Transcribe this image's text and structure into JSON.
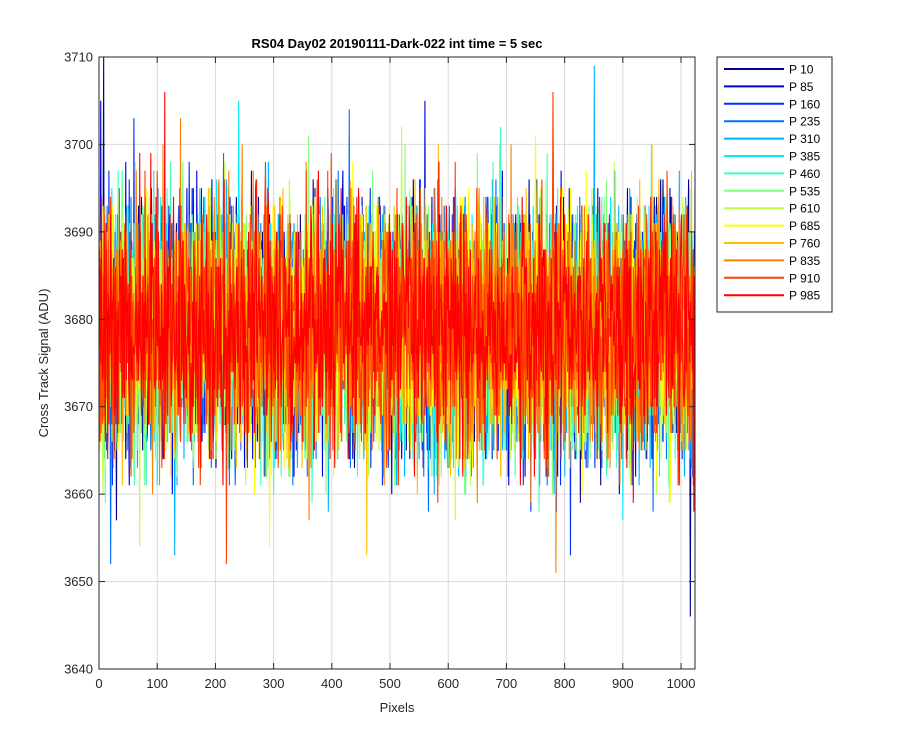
{
  "chart_data": {
    "type": "line",
    "title": "RS04 Day02 20190111-Dark-022 int time = 5 sec",
    "xlabel": "Pixels",
    "ylabel": "Cross Track Signal (ADU)",
    "xlim": [
      0,
      1024
    ],
    "ylim": [
      3640,
      3710
    ],
    "xticks": [
      0,
      100,
      200,
      300,
      400,
      500,
      600,
      700,
      800,
      900,
      1000
    ],
    "yticks": [
      3640,
      3650,
      3660,
      3670,
      3680,
      3690,
      3700,
      3710
    ],
    "grid": true,
    "legend_position": "outside-top-right",
    "signal_mean": 3679,
    "signal_spread": 7,
    "series": [
      {
        "name": "P 10",
        "color": "#00008f",
        "seed": 11,
        "extremes": [
          [
            8,
            3710
          ],
          [
            1016,
            3646
          ]
        ]
      },
      {
        "name": "P 85",
        "color": "#0000dc",
        "seed": 23,
        "extremes": [
          [
            3,
            3705
          ],
          [
            560,
            3705
          ]
        ]
      },
      {
        "name": "P 160",
        "color": "#0030ff",
        "seed": 37,
        "extremes": [
          [
            60,
            3703
          ],
          [
            810,
            3653
          ]
        ]
      },
      {
        "name": "P 235",
        "color": "#0070ff",
        "seed": 41,
        "extremes": [
          [
            20,
            3652
          ],
          [
            430,
            3704
          ]
        ]
      },
      {
        "name": "P 310",
        "color": "#00b0ff",
        "seed": 53,
        "extremes": [
          [
            130,
            3653
          ],
          [
            851,
            3709
          ]
        ]
      },
      {
        "name": "P 385",
        "color": "#00f0ff",
        "seed": 67,
        "extremes": [
          [
            240,
            3705
          ],
          [
            900,
            3657
          ]
        ]
      },
      {
        "name": "P 460",
        "color": "#40ffbf",
        "seed": 71,
        "extremes": [
          [
            300,
            3660
          ],
          [
            690,
            3702
          ]
        ]
      },
      {
        "name": "P 535",
        "color": "#80ff80",
        "seed": 83,
        "extremes": [
          [
            360,
            3701
          ],
          [
            980,
            3659
          ]
        ]
      },
      {
        "name": "P 610",
        "color": "#bfff40",
        "seed": 97,
        "extremes": [
          [
            70,
            3654
          ],
          [
            520,
            3702
          ]
        ]
      },
      {
        "name": "P 685",
        "color": "#ffff00",
        "seed": 101,
        "extremes": [
          [
            293,
            3654
          ],
          [
            750,
            3701
          ]
        ]
      },
      {
        "name": "P 760",
        "color": "#ffbf00",
        "seed": 113,
        "extremes": [
          [
            460,
            3653
          ],
          [
            950,
            3700
          ]
        ]
      },
      {
        "name": "P 835",
        "color": "#ff8000",
        "seed": 127,
        "extremes": [
          [
            785,
            3651
          ],
          [
            140,
            3703
          ]
        ]
      },
      {
        "name": "P 910",
        "color": "#ff4000",
        "seed": 131,
        "extremes": [
          [
            219,
            3652
          ],
          [
            780,
            3706
          ]
        ]
      },
      {
        "name": "P 985",
        "color": "#ff0000",
        "seed": 139,
        "extremes": [
          [
            113,
            3706
          ],
          [
            1022,
            3658
          ]
        ]
      }
    ]
  }
}
